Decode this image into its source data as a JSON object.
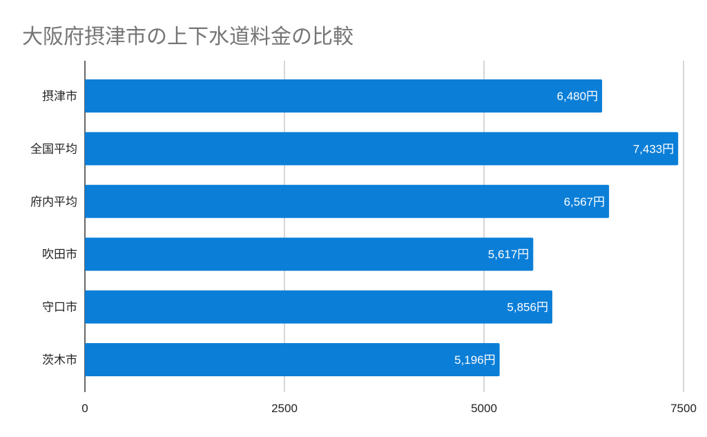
{
  "chart_data": {
    "type": "bar",
    "orientation": "horizontal",
    "title": "大阪府摂津市の上下水道料金の比較",
    "categories": [
      "摂津市",
      "全国平均",
      "府内平均",
      "吹田市",
      "守口市",
      "茨木市"
    ],
    "values": [
      6480,
      7433,
      6567,
      5617,
      5856,
      5196
    ],
    "data_labels": [
      "6,480円",
      "7,433円",
      "6,567円",
      "5,617円",
      "5,856円",
      "5,196円"
    ],
    "xlim": [
      0,
      7500
    ],
    "x_ticks": [
      0,
      2500,
      5000,
      7500
    ],
    "x_tick_labels": [
      "0",
      "2500",
      "5000",
      "7500"
    ],
    "grid": true,
    "bar_color": "#0b7ed8",
    "grid_color": "#c8c8c8",
    "axis_color": "#333333"
  }
}
